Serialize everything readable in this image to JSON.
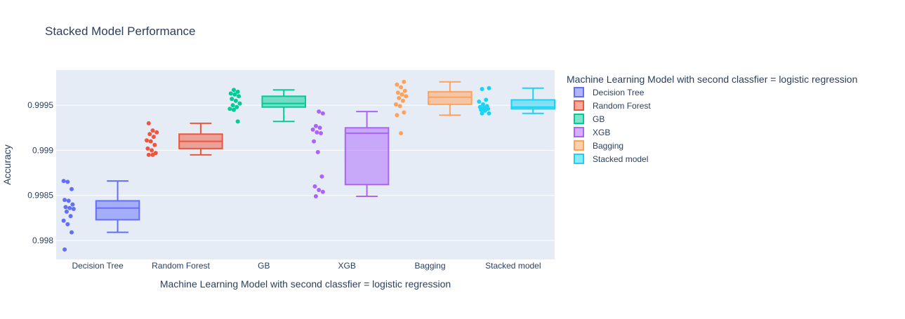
{
  "chart_data": {
    "type": "box",
    "title": "Stacked Model Performance",
    "xlabel": "Machine Learning Model with second classfier = logistic regression",
    "ylabel": "Accuracy",
    "ylim": [
      0.99779,
      0.99989
    ],
    "y_ticks": [
      {
        "value": 0.998,
        "label": "0.998"
      },
      {
        "value": 0.9985,
        "label": "0.9985"
      },
      {
        "value": 0.999,
        "label": "0.999"
      },
      {
        "value": 0.9995,
        "label": "0.9995"
      }
    ],
    "grid": true,
    "legend": {
      "title": "Machine Learning Model with second classfier = logistic regression",
      "placement": "top-right"
    },
    "categories": [
      "Decision Tree",
      "Random Forest",
      "GB",
      "XGB",
      "Bagging",
      "Stacked model"
    ],
    "series": [
      {
        "name": "Decision Tree",
        "color": "#636efa",
        "fill": "rgba(99,110,250,0.5)",
        "box": {
          "min": 0.99809,
          "q1": 0.99823,
          "median": 0.99836,
          "q3": 0.99844,
          "max": 0.99866
        },
        "points": [
          0.99866,
          0.99865,
          0.99857,
          0.99845,
          0.99844,
          0.9984,
          0.99837,
          0.99836,
          0.99835,
          0.99832,
          0.99827,
          0.99822,
          0.99818,
          0.99809,
          0.9979
        ]
      },
      {
        "name": "Random Forest",
        "color": "#ef553b",
        "fill": "rgba(239,85,59,0.5)",
        "box": {
          "min": 0.99895,
          "q1": 0.99902,
          "median": 0.9991,
          "q3": 0.99918,
          "max": 0.9993
        },
        "points": [
          0.9993,
          0.99922,
          0.9992,
          0.99918,
          0.99915,
          0.99911,
          0.9991,
          0.99906,
          0.99902,
          0.999,
          0.99897,
          0.99895,
          0.99895
        ]
      },
      {
        "name": "GB",
        "color": "#00cc96",
        "fill": "rgba(0,204,150,0.5)",
        "box": {
          "min": 0.99932,
          "q1": 0.99948,
          "median": 0.99952,
          "q3": 0.9996,
          "max": 0.99967
        },
        "points": [
          0.99967,
          0.99965,
          0.99963,
          0.99962,
          0.9996,
          0.99957,
          0.99955,
          0.99952,
          0.9995,
          0.99948,
          0.99946,
          0.99945,
          0.99932
        ]
      },
      {
        "name": "XGB",
        "color": "#ab63fa",
        "fill": "rgba(171,99,250,0.5)",
        "box": {
          "min": 0.99849,
          "q1": 0.99862,
          "median": 0.99919,
          "q3": 0.99925,
          "max": 0.99943
        },
        "points": [
          0.99943,
          0.99941,
          0.99927,
          0.99925,
          0.99923,
          0.9992,
          0.99919,
          0.9991,
          0.99898,
          0.99871,
          0.9986,
          0.99856,
          0.99854,
          0.99849
        ]
      },
      {
        "name": "Bagging",
        "color": "#ffa15a",
        "fill": "rgba(255,161,90,0.5)",
        "box": {
          "min": 0.99939,
          "q1": 0.99951,
          "median": 0.99959,
          "q3": 0.99965,
          "max": 0.99976
        },
        "points": [
          0.99976,
          0.99973,
          0.9997,
          0.99966,
          0.99964,
          0.99962,
          0.9996,
          0.99958,
          0.99955,
          0.99951,
          0.99949,
          0.99942,
          0.99939,
          0.99919
        ]
      },
      {
        "name": "Stacked model",
        "color": "#19d3f3",
        "fill": "rgba(25,211,243,0.5)",
        "box": {
          "min": 0.99941,
          "q1": 0.99946,
          "median": 0.99948,
          "q3": 0.99956,
          "max": 0.99969
        },
        "points": [
          0.99969,
          0.99968,
          0.99956,
          0.99954,
          0.99951,
          0.99949,
          0.99948,
          0.99947,
          0.99946,
          0.99945,
          0.99944,
          0.99941,
          0.99941
        ]
      }
    ]
  }
}
